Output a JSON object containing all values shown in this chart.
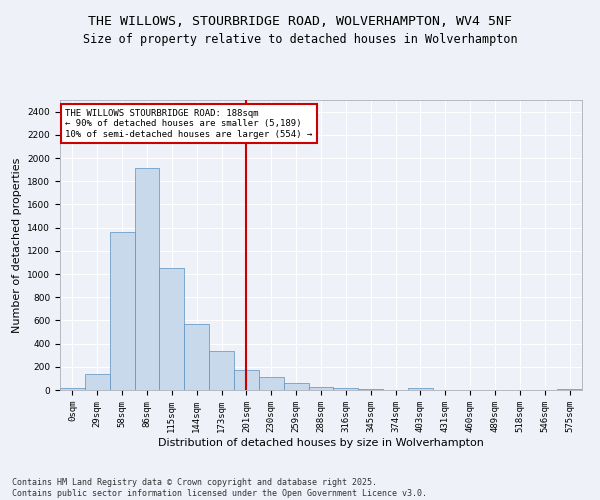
{
  "title": "THE WILLOWS, STOURBRIDGE ROAD, WOLVERHAMPTON, WV4 5NF",
  "subtitle": "Size of property relative to detached houses in Wolverhampton",
  "xlabel": "Distribution of detached houses by size in Wolverhampton",
  "ylabel": "Number of detached properties",
  "bar_labels": [
    "0sqm",
    "29sqm",
    "58sqm",
    "86sqm",
    "115sqm",
    "144sqm",
    "173sqm",
    "201sqm",
    "230sqm",
    "259sqm",
    "288sqm",
    "316sqm",
    "345sqm",
    "374sqm",
    "403sqm",
    "431sqm",
    "460sqm",
    "489sqm",
    "518sqm",
    "546sqm",
    "575sqm"
  ],
  "bar_values": [
    15,
    135,
    1360,
    1910,
    1055,
    565,
    335,
    170,
    110,
    60,
    30,
    20,
    10,
    0,
    20,
    0,
    0,
    0,
    0,
    0,
    10
  ],
  "bar_color": "#c8d9ec",
  "bar_edge_color": "#5a8fc0",
  "vline_x": 7.0,
  "vline_color": "#cc0000",
  "annotation_title": "THE WILLOWS STOURBRIDGE ROAD: 188sqm",
  "annotation_line1": "← 90% of detached houses are smaller (5,189)",
  "annotation_line2": "10% of semi-detached houses are larger (554) →",
  "annotation_box_color": "#ffffff",
  "annotation_border_color": "#cc0000",
  "ylim": [
    0,
    2500
  ],
  "yticks": [
    0,
    200,
    400,
    600,
    800,
    1000,
    1200,
    1400,
    1600,
    1800,
    2000,
    2200,
    2400
  ],
  "footer1": "Contains HM Land Registry data © Crown copyright and database right 2025.",
  "footer2": "Contains public sector information licensed under the Open Government Licence v3.0.",
  "background_color": "#eef2f8",
  "grid_color": "#ffffff",
  "title_fontsize": 9.5,
  "subtitle_fontsize": 8.5,
  "axis_label_fontsize": 8,
  "tick_fontsize": 6.5,
  "annotation_fontsize": 6.5,
  "footer_fontsize": 6.0
}
